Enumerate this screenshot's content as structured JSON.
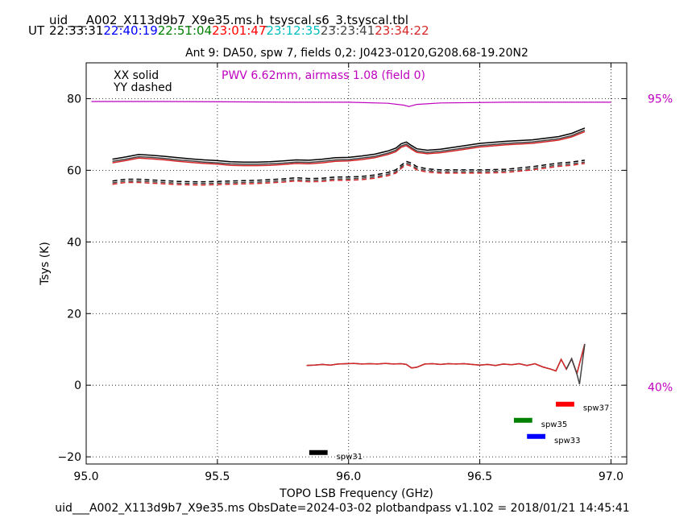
{
  "header": {
    "filename": "uid___A002_X113d9b7_X9e35.ms.h_tsyscal.s6_3.tsyscal.tbl",
    "ut_label": "UT",
    "times": [
      {
        "text": "22:33:31",
        "color": "#000000"
      },
      {
        "text": "22:40:19",
        "color": "#0000ff"
      },
      {
        "text": "22:51:04",
        "color": "#008000"
      },
      {
        "text": "23:01:47",
        "color": "#ff0000"
      },
      {
        "text": "23:12:35",
        "color": "#00bfbf"
      },
      {
        "text": "23:23:41",
        "color": "#444444"
      },
      {
        "text": "23:34:22",
        "color": "#d62728"
      }
    ],
    "plot_title": "Ant 9: DA50,  spw 7,  fields 0,2: J0423-0120,G208.68-19.20N2"
  },
  "footer": {
    "text": "uid___A002_X113d9b7_X9e35.ms  ObsDate=2024-03-02   plotbandpass v1.102 = 2018/01/21 14:45:41"
  },
  "chart_data": {
    "type": "line",
    "xlabel": "TOPO LSB Frequency (GHz)",
    "ylabel": "Tsys (K)",
    "xlim": [
      95.0,
      97.06
    ],
    "ylim": [
      -22,
      90
    ],
    "xticks": [
      95.0,
      95.5,
      96.0,
      96.5,
      97.0
    ],
    "xtick_labels": [
      "95.0",
      "95.5",
      "96.0",
      "96.5",
      "97.0"
    ],
    "yticks": [
      -20,
      0,
      20,
      40,
      60,
      80
    ],
    "ytick_labels": [
      "−20",
      "0",
      "20",
      "40",
      "60",
      "80"
    ],
    "grid": true,
    "legend_text": [
      "XX solid",
      "YY dashed"
    ],
    "pwv_label": "PWV 6.62mm, airmass 1.08 (field 0)",
    "pwv_color": "#bf00bf",
    "right_labels": [
      {
        "text": "95%",
        "y": 80
      },
      {
        "text": "40%",
        "y": -0.5
      }
    ],
    "transmission": {
      "color": "#bf00bf",
      "x": [
        95.02,
        95.3,
        95.6,
        95.8,
        96.0,
        96.15,
        96.21,
        96.23,
        96.26,
        96.35,
        96.6,
        96.9,
        97.0
      ],
      "y": [
        79.2,
        79.2,
        79.1,
        79.0,
        79.0,
        78.7,
        78.2,
        77.8,
        78.4,
        78.8,
        79.0,
        79.0,
        79.0
      ]
    },
    "series": [
      {
        "pol": "XX",
        "style": "solid",
        "colors": [
          "#000000",
          "#444444",
          "#d62728"
        ],
        "offsets": [
          0.6,
          0.0,
          -0.4
        ],
        "x": [
          95.1,
          95.15,
          95.2,
          95.25,
          95.3,
          95.35,
          95.4,
          95.45,
          95.5,
          95.55,
          95.6,
          95.65,
          95.7,
          95.75,
          95.8,
          95.85,
          95.9,
          95.95,
          96.0,
          96.05,
          96.1,
          96.15,
          96.18,
          96.2,
          96.22,
          96.24,
          96.26,
          96.3,
          96.35,
          96.4,
          96.5,
          96.6,
          96.7,
          96.8,
          96.85,
          96.9
        ],
        "y": [
          62.5,
          63.1,
          63.8,
          63.6,
          63.3,
          62.9,
          62.6,
          62.3,
          62.1,
          61.8,
          61.7,
          61.7,
          61.8,
          62.0,
          62.3,
          62.2,
          62.5,
          62.9,
          63.0,
          63.4,
          63.9,
          64.8,
          65.6,
          66.8,
          67.3,
          66.3,
          65.4,
          65.0,
          65.3,
          65.8,
          66.9,
          67.5,
          67.9,
          68.8,
          69.7,
          71.2
        ]
      },
      {
        "pol": "YY",
        "style": "dashed",
        "colors": [
          "#000000",
          "#444444",
          "#d62728"
        ],
        "offsets": [
          0.5,
          0.0,
          -0.4
        ],
        "x": [
          95.1,
          95.15,
          95.2,
          95.25,
          95.3,
          95.35,
          95.4,
          95.45,
          95.5,
          95.55,
          95.6,
          95.65,
          95.7,
          95.75,
          95.8,
          95.85,
          95.9,
          95.95,
          96.0,
          96.05,
          96.1,
          96.15,
          96.18,
          96.2,
          96.22,
          96.24,
          96.26,
          96.3,
          96.35,
          96.4,
          96.5,
          96.6,
          96.7,
          96.8,
          96.85,
          96.9
        ],
        "y": [
          56.5,
          57.0,
          57.0,
          56.8,
          56.6,
          56.4,
          56.3,
          56.3,
          56.4,
          56.5,
          56.6,
          56.7,
          56.9,
          57.1,
          57.4,
          57.2,
          57.3,
          57.6,
          57.6,
          57.8,
          58.2,
          58.9,
          59.6,
          60.9,
          62.0,
          61.5,
          60.5,
          59.9,
          59.6,
          59.6,
          59.6,
          59.8,
          60.5,
          61.5,
          61.8,
          62.3
        ]
      },
      {
        "pol": "XX",
        "style": "solid",
        "colors": [
          "#444444",
          "#d62728"
        ],
        "offsets": [
          0.0,
          0.0
        ],
        "x": [
          95.84,
          95.87,
          95.9,
          95.93,
          95.96,
          95.99,
          96.02,
          96.05,
          96.08,
          96.11,
          96.14,
          96.17,
          96.2,
          96.22,
          96.24,
          96.26,
          96.29,
          96.32,
          96.35,
          96.38,
          96.41,
          96.44,
          96.47,
          96.5,
          96.53,
          96.56,
          96.59,
          96.62,
          96.65,
          96.68,
          96.71,
          96.74,
          96.77,
          96.79,
          96.81,
          96.83,
          96.85,
          96.87,
          96.9
        ],
        "y": [
          5.5,
          5.6,
          5.8,
          5.6,
          5.9,
          6.0,
          6.1,
          5.9,
          6.0,
          5.9,
          6.1,
          5.9,
          6.0,
          5.8,
          4.8,
          5.0,
          5.9,
          6.0,
          5.8,
          6.0,
          5.9,
          6.0,
          5.8,
          5.6,
          5.8,
          5.5,
          5.9,
          5.7,
          6.0,
          5.5,
          6.0,
          5.1,
          4.5,
          4.0,
          7.2,
          4.5,
          7.4,
          3.2,
          11.5
        ]
      },
      {
        "pol": "XX",
        "style": "solid",
        "colors": [
          "#444444"
        ],
        "offsets": [
          0.0
        ],
        "x": [
          96.83,
          96.85,
          96.87,
          96.88,
          96.9
        ],
        "y": [
          4.5,
          7.4,
          3.2,
          0.3,
          11.5
        ]
      }
    ],
    "spw_markers": [
      {
        "label": "spw37",
        "color": "#ff0000",
        "x0": 96.79,
        "x1": 96.86,
        "y": -5.3
      },
      {
        "label": "spw35",
        "color": "#008000",
        "x0": 96.63,
        "x1": 96.7,
        "y": -9.8
      },
      {
        "label": "spw33",
        "color": "#0000ff",
        "x0": 96.68,
        "x1": 96.75,
        "y": -14.3
      },
      {
        "label": "spw31",
        "color": "#000000",
        "x0": 95.85,
        "x1": 95.92,
        "y": -18.8
      }
    ]
  }
}
